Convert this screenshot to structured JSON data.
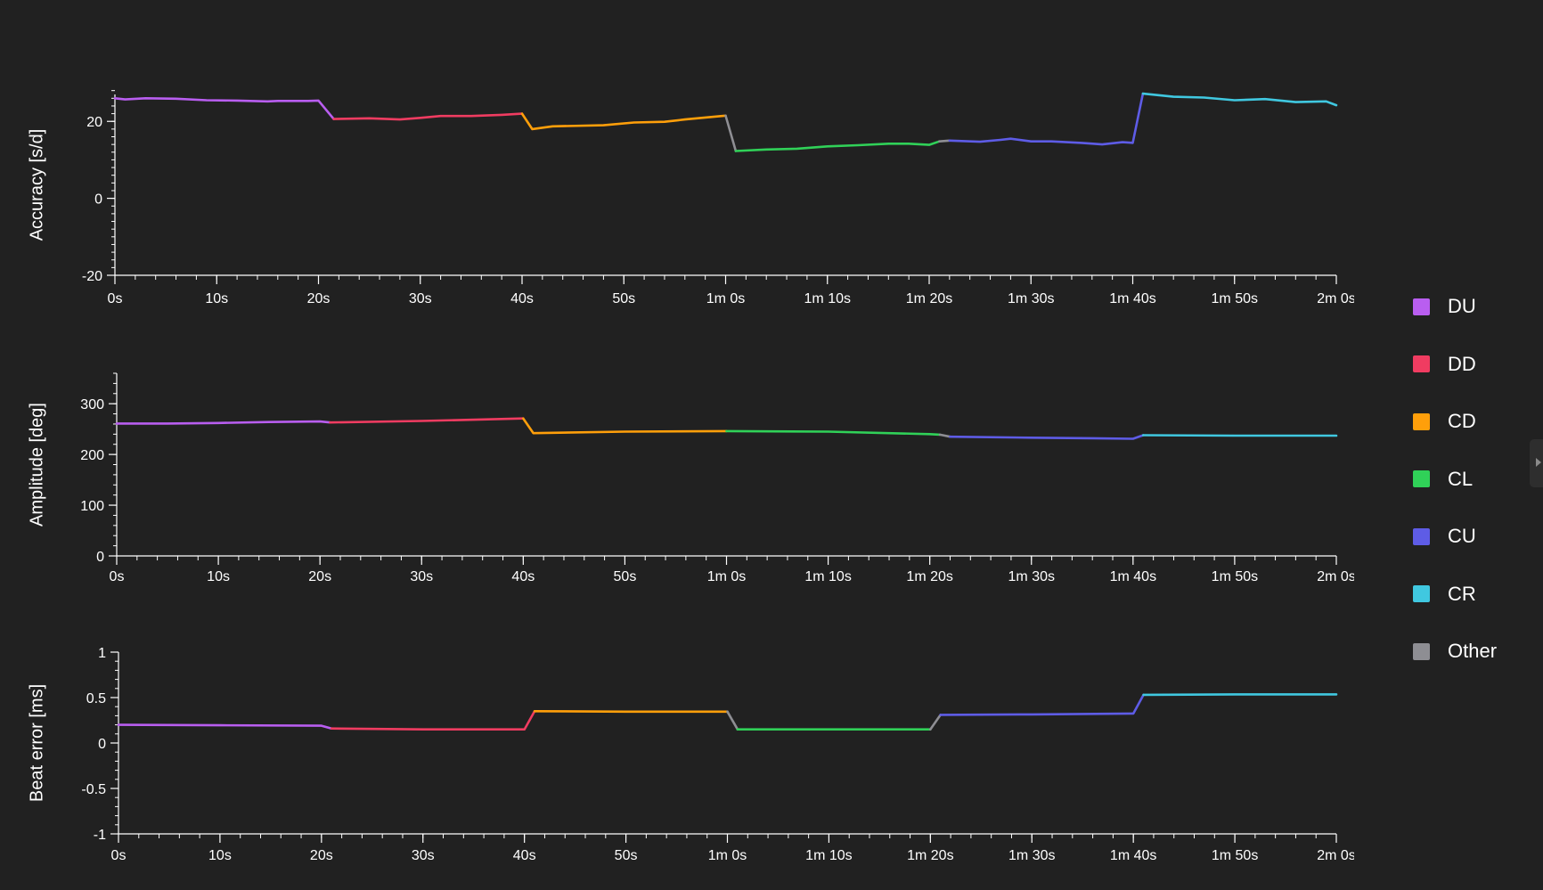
{
  "colors": {
    "background": "#212121",
    "axis": "#ffffff",
    "DU": "#b95ef0",
    "DD": "#f03c61",
    "CD": "#ff9f0a",
    "CL": "#30d158",
    "CU": "#5e5ce6",
    "CR": "#40c8e0",
    "Other": "#8e8e93"
  },
  "legend": {
    "items": [
      {
        "key": "DU",
        "label": "DU"
      },
      {
        "key": "DD",
        "label": "DD"
      },
      {
        "key": "CD",
        "label": "CD"
      },
      {
        "key": "CL",
        "label": "CL"
      },
      {
        "key": "CU",
        "label": "CU"
      },
      {
        "key": "CR",
        "label": "CR"
      },
      {
        "key": "Other",
        "label": "Other"
      }
    ]
  },
  "chart_data": [
    {
      "type": "line",
      "ylabel": "Accuracy [s/d]",
      "xlabel": "",
      "xlim": [
        0,
        120
      ],
      "ylim": [
        -20,
        27
      ],
      "xticks": [
        {
          "v": 0,
          "label": "0s"
        },
        {
          "v": 10,
          "label": "10s"
        },
        {
          "v": 20,
          "label": "20s"
        },
        {
          "v": 30,
          "label": "30s"
        },
        {
          "v": 40,
          "label": "40s"
        },
        {
          "v": 50,
          "label": "50s"
        },
        {
          "v": 60,
          "label": "1m 0s"
        },
        {
          "v": 70,
          "label": "1m 10s"
        },
        {
          "v": 80,
          "label": "1m 20s"
        },
        {
          "v": 90,
          "label": "1m 30s"
        },
        {
          "v": 100,
          "label": "1m 40s"
        },
        {
          "v": 110,
          "label": "1m 50s"
        },
        {
          "v": 120,
          "label": "2m 0s"
        }
      ],
      "yticks": [
        {
          "v": -20,
          "label": "-20"
        },
        {
          "v": 0,
          "label": "0"
        },
        {
          "v": 20,
          "label": "20"
        }
      ],
      "yminor": 2,
      "segments": [
        {
          "series": "DU",
          "points": [
            [
              0,
              26
            ],
            [
              1,
              25.7
            ],
            [
              3,
              26
            ],
            [
              6,
              25.9
            ],
            [
              9,
              25.5
            ],
            [
              12,
              25.4
            ],
            [
              15,
              25.2
            ],
            [
              16,
              25.3
            ],
            [
              19,
              25.3
            ],
            [
              20,
              25.4
            ],
            [
              21.5,
              20.6
            ]
          ]
        },
        {
          "series": "DD",
          "points": [
            [
              21.5,
              20.6
            ],
            [
              25,
              20.8
            ],
            [
              28,
              20.5
            ],
            [
              30,
              20.9
            ],
            [
              32,
              21.4
            ],
            [
              35,
              21.4
            ],
            [
              38,
              21.7
            ],
            [
              40,
              22
            ]
          ]
        },
        {
          "series": "CD",
          "points": [
            [
              40,
              22
            ],
            [
              41,
              18
            ],
            [
              43,
              18.7
            ],
            [
              48,
              19
            ],
            [
              51,
              19.7
            ],
            [
              54,
              19.9
            ],
            [
              56,
              20.5
            ],
            [
              60,
              21.5
            ]
          ]
        },
        {
          "series": "Other",
          "points": [
            [
              60,
              21.5
            ],
            [
              61,
              12.3
            ]
          ]
        },
        {
          "series": "CL",
          "points": [
            [
              61,
              12.3
            ],
            [
              64,
              12.7
            ],
            [
              67,
              12.9
            ],
            [
              70,
              13.5
            ],
            [
              73,
              13.8
            ],
            [
              76,
              14.2
            ],
            [
              78,
              14.2
            ],
            [
              80,
              13.9
            ],
            [
              81,
              14.8
            ]
          ]
        },
        {
          "series": "Other",
          "points": [
            [
              81,
              14.8
            ],
            [
              82,
              15
            ]
          ]
        },
        {
          "series": "CU",
          "points": [
            [
              82,
              15
            ],
            [
              85,
              14.7
            ],
            [
              87,
              15.2
            ],
            [
              88,
              15.5
            ],
            [
              90,
              14.8
            ],
            [
              92,
              14.8
            ],
            [
              95,
              14.4
            ],
            [
              97,
              14
            ],
            [
              99,
              14.6
            ],
            [
              100,
              14.4
            ],
            [
              101,
              27.2
            ]
          ]
        },
        {
          "series": "CR",
          "points": [
            [
              101,
              27.2
            ],
            [
              104,
              26.4
            ],
            [
              107,
              26.2
            ],
            [
              110,
              25.5
            ],
            [
              113,
              25.8
            ],
            [
              116,
              25
            ],
            [
              119,
              25.2
            ],
            [
              120,
              24.2
            ]
          ]
        }
      ]
    },
    {
      "type": "line",
      "ylabel": "Amplitude [deg]",
      "xlabel": "",
      "xlim": [
        0,
        120
      ],
      "ylim": [
        0,
        360
      ],
      "xticks": [
        {
          "v": 0,
          "label": "0s"
        },
        {
          "v": 10,
          "label": "10s"
        },
        {
          "v": 20,
          "label": "20s"
        },
        {
          "v": 30,
          "label": "30s"
        },
        {
          "v": 40,
          "label": "40s"
        },
        {
          "v": 50,
          "label": "50s"
        },
        {
          "v": 60,
          "label": "1m 0s"
        },
        {
          "v": 70,
          "label": "1m 10s"
        },
        {
          "v": 80,
          "label": "1m 20s"
        },
        {
          "v": 90,
          "label": "1m 30s"
        },
        {
          "v": 100,
          "label": "1m 40s"
        },
        {
          "v": 110,
          "label": "1m 50s"
        },
        {
          "v": 120,
          "label": "2m 0s"
        }
      ],
      "yticks": [
        {
          "v": 0,
          "label": "0"
        },
        {
          "v": 100,
          "label": "100"
        },
        {
          "v": 200,
          "label": "200"
        },
        {
          "v": 300,
          "label": "300"
        }
      ],
      "yminor": 20,
      "segments": [
        {
          "series": "DU",
          "points": [
            [
              0,
              261
            ],
            [
              5,
              261
            ],
            [
              10,
              262
            ],
            [
              15,
              264
            ],
            [
              20,
              265
            ],
            [
              21,
              263
            ]
          ]
        },
        {
          "series": "DD",
          "points": [
            [
              21,
              263
            ],
            [
              30,
              266
            ],
            [
              40,
              271
            ]
          ]
        },
        {
          "series": "CD",
          "points": [
            [
              40,
              271
            ],
            [
              41,
              242
            ],
            [
              50,
              245
            ],
            [
              60,
              246
            ]
          ]
        },
        {
          "series": "CL",
          "points": [
            [
              60,
              246
            ],
            [
              70,
              245
            ],
            [
              80,
              240
            ],
            [
              81,
              239
            ]
          ]
        },
        {
          "series": "Other",
          "points": [
            [
              81,
              239
            ],
            [
              82,
              235
            ]
          ]
        },
        {
          "series": "CU",
          "points": [
            [
              82,
              235
            ],
            [
              90,
              233
            ],
            [
              96,
              232
            ],
            [
              100,
              231
            ],
            [
              101,
              238
            ]
          ]
        },
        {
          "series": "CR",
          "points": [
            [
              101,
              238
            ],
            [
              110,
              237
            ],
            [
              120,
              237
            ]
          ]
        }
      ]
    },
    {
      "type": "line",
      "ylabel": "Beat error [ms]",
      "xlabel": "",
      "xlim": [
        0,
        120
      ],
      "ylim": [
        -1,
        1
      ],
      "xticks": [
        {
          "v": 0,
          "label": "0s"
        },
        {
          "v": 10,
          "label": "10s"
        },
        {
          "v": 20,
          "label": "20s"
        },
        {
          "v": 30,
          "label": "30s"
        },
        {
          "v": 40,
          "label": "40s"
        },
        {
          "v": 50,
          "label": "50s"
        },
        {
          "v": 60,
          "label": "1m 0s"
        },
        {
          "v": 70,
          "label": "1m 10s"
        },
        {
          "v": 80,
          "label": "1m 20s"
        },
        {
          "v": 90,
          "label": "1m 30s"
        },
        {
          "v": 100,
          "label": "1m 40s"
        },
        {
          "v": 110,
          "label": "1m 50s"
        },
        {
          "v": 120,
          "label": "2m 0s"
        }
      ],
      "yticks": [
        {
          "v": -1,
          "label": "-1"
        },
        {
          "v": -0.5,
          "label": "-0.5"
        },
        {
          "v": 0,
          "label": "0"
        },
        {
          "v": 0.5,
          "label": "0.5"
        },
        {
          "v": 1,
          "label": "1"
        }
      ],
      "yminor": 0.1,
      "segments": [
        {
          "series": "DU",
          "points": [
            [
              0,
              0.2
            ],
            [
              10,
              0.195
            ],
            [
              20,
              0.19
            ],
            [
              21,
              0.16
            ]
          ]
        },
        {
          "series": "DD",
          "points": [
            [
              21,
              0.16
            ],
            [
              30,
              0.15
            ],
            [
              40,
              0.15
            ],
            [
              41,
              0.35
            ]
          ]
        },
        {
          "series": "CD",
          "points": [
            [
              41,
              0.35
            ],
            [
              50,
              0.345
            ],
            [
              60,
              0.345
            ]
          ]
        },
        {
          "series": "Other",
          "points": [
            [
              60,
              0.345
            ],
            [
              61,
              0.15
            ]
          ]
        },
        {
          "series": "CL",
          "points": [
            [
              61,
              0.15
            ],
            [
              70,
              0.15
            ],
            [
              80,
              0.15
            ]
          ]
        },
        {
          "series": "Other",
          "points": [
            [
              80,
              0.15
            ],
            [
              81,
              0.31
            ]
          ]
        },
        {
          "series": "CU",
          "points": [
            [
              81,
              0.31
            ],
            [
              90,
              0.315
            ],
            [
              100,
              0.325
            ],
            [
              101,
              0.53
            ]
          ]
        },
        {
          "series": "CR",
          "points": [
            [
              101,
              0.53
            ],
            [
              110,
              0.535
            ],
            [
              120,
              0.535
            ]
          ]
        }
      ]
    }
  ]
}
